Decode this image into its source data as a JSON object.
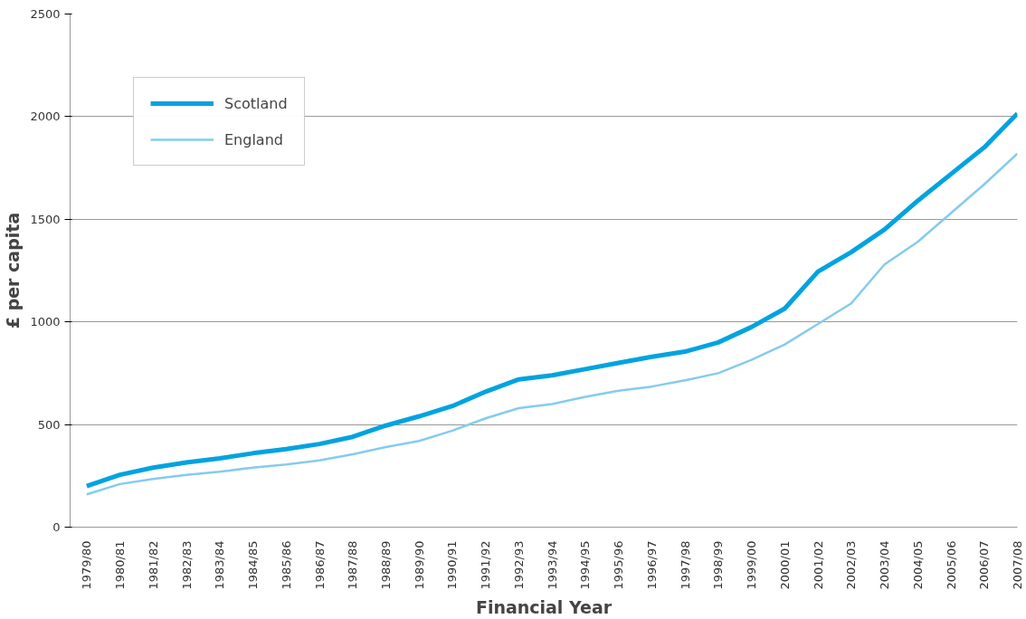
{
  "chart_data": {
    "type": "line",
    "xlabel": "Financial Year",
    "ylabel": "£ per capita",
    "categories": [
      "1979/80",
      "1980/81",
      "1981/82",
      "1982/83",
      "1983/84",
      "1984/85",
      "1985/86",
      "1986/87",
      "1987/88",
      "1988/89",
      "1989/90",
      "1990/91",
      "1991/92",
      "1992/93",
      "1993/94",
      "1994/95",
      "1995/96",
      "1996/97",
      "1997/98",
      "1998/99",
      "1999/00",
      "2000/01",
      "2001/02",
      "2002/03",
      "2003/04",
      "2004/05",
      "2005/06",
      "2006/07",
      "2007/08"
    ],
    "series": [
      {
        "name": "Scotland",
        "color": "#00a3e0",
        "values": [
          200,
          255,
          290,
          315,
          335,
          360,
          380,
          405,
          440,
          495,
          540,
          590,
          660,
          720,
          740,
          770,
          800,
          830,
          855,
          900,
          975,
          1065,
          1245,
          1340,
          1450,
          1590,
          1720,
          1850,
          2015
        ]
      },
      {
        "name": "England",
        "color": "#85cbee",
        "values": [
          160,
          210,
          235,
          255,
          270,
          290,
          305,
          325,
          355,
          390,
          420,
          470,
          530,
          580,
          600,
          635,
          665,
          685,
          715,
          750,
          815,
          890,
          990,
          1090,
          1280,
          1390,
          1530,
          1670,
          1820
        ]
      }
    ],
    "ylim": [
      0,
      2500
    ],
    "yticks": [
      0,
      500,
      1000,
      1500,
      2000,
      2500
    ],
    "grid": "y",
    "legend": "top left",
    "line_style": "solid",
    "marker": "none"
  }
}
